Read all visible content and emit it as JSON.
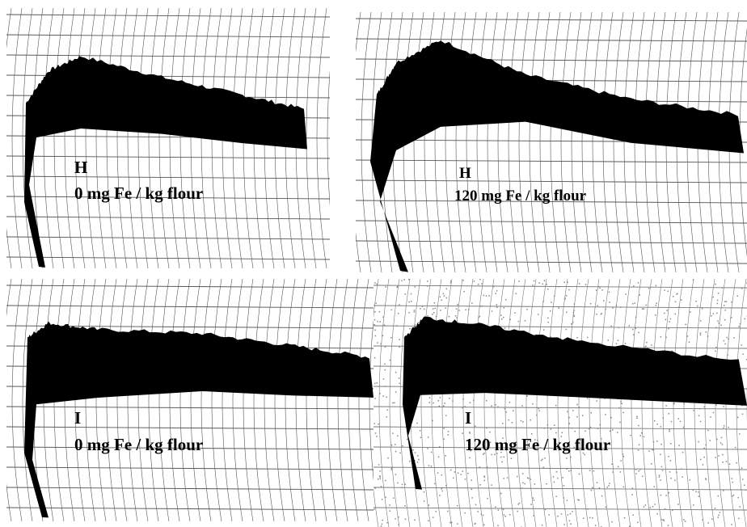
{
  "panels": [
    {
      "label": "H",
      "caption": "0 mg Fe / kg flour"
    },
    {
      "label": "H",
      "caption": "120 mg Fe / kg flour"
    },
    {
      "label": "I",
      "caption": "0 mg Fe / kg flour"
    },
    {
      "label": "I",
      "caption": "120 mg Fe / kg flour"
    }
  ]
}
